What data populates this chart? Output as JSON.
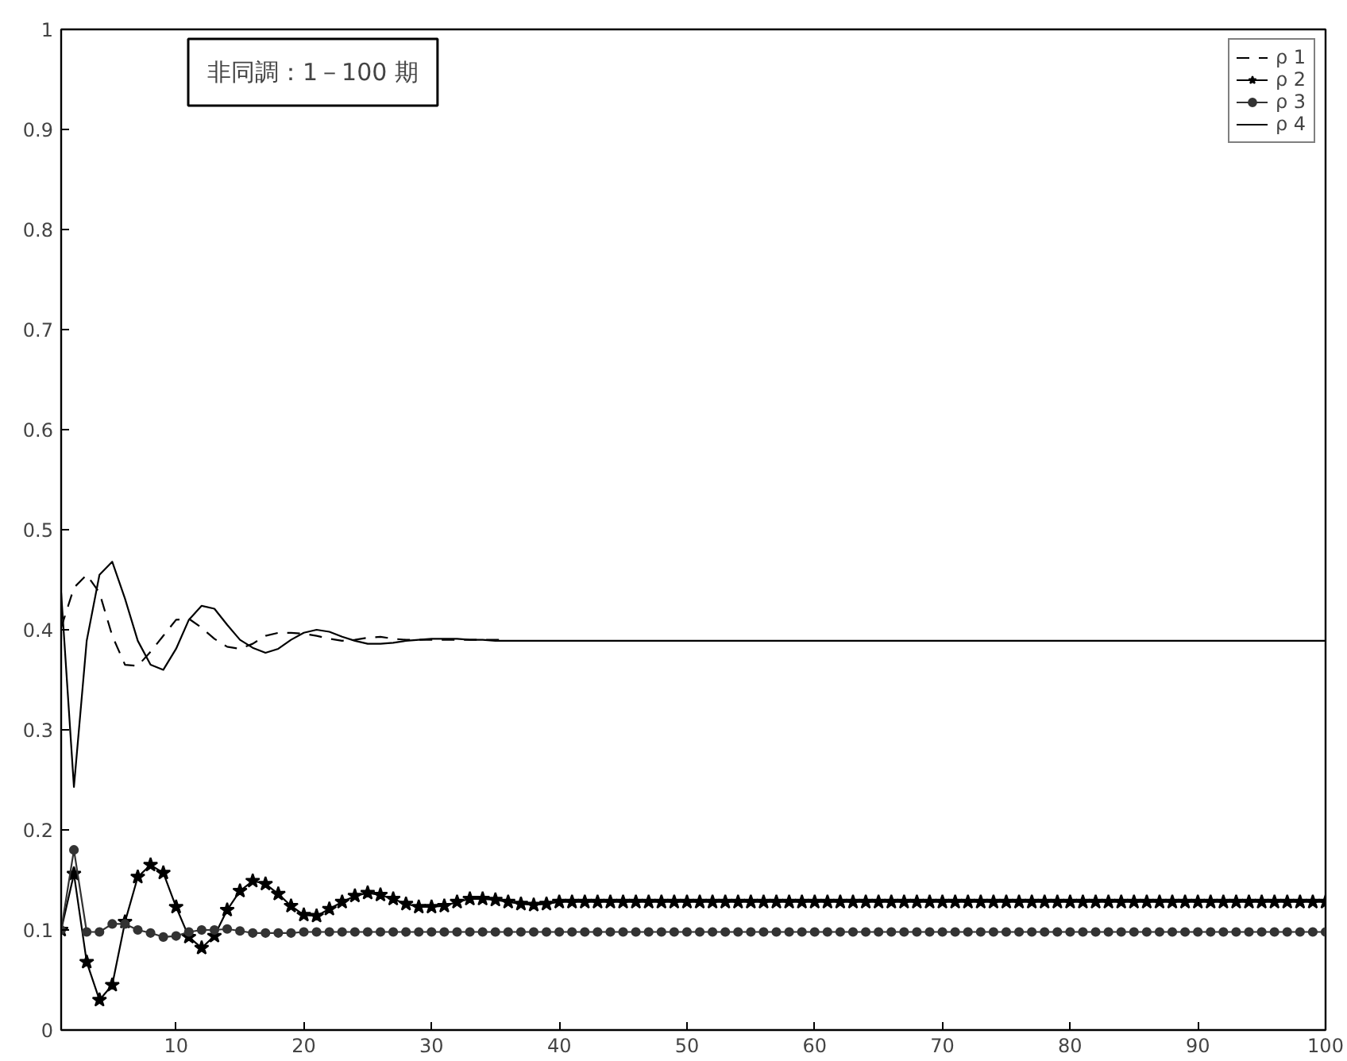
{
  "chart_data": {
    "type": "line",
    "annotations": [
      "非同調：1－100 期"
    ],
    "x": [
      1,
      2,
      3,
      4,
      5,
      6,
      7,
      8,
      9,
      10,
      11,
      12,
      13,
      14,
      15,
      16,
      17,
      18,
      19,
      20,
      21,
      22,
      23,
      24,
      25,
      26,
      27,
      28,
      29,
      30,
      31,
      32,
      33,
      34,
      35,
      36,
      37,
      38,
      39,
      40,
      41,
      42,
      43,
      44,
      45,
      46,
      47,
      48,
      49,
      50,
      51,
      52,
      53,
      54,
      55,
      56,
      57,
      58,
      59,
      60,
      61,
      62,
      63,
      64,
      65,
      66,
      67,
      68,
      69,
      70,
      71,
      72,
      73,
      74,
      75,
      76,
      77,
      78,
      79,
      80,
      81,
      82,
      83,
      84,
      85,
      86,
      87,
      88,
      89,
      90,
      91,
      92,
      93,
      94,
      95,
      96,
      97,
      98,
      99,
      100
    ],
    "series": [
      {
        "name": "ρ 1",
        "color": "#000000",
        "line_style": "dashed",
        "marker": "none",
        "x": [
          1,
          2,
          3,
          4,
          5,
          6,
          7,
          8,
          9,
          10,
          11,
          12,
          13,
          14,
          15,
          16,
          17,
          18,
          19,
          20,
          21,
          22,
          23,
          24,
          25,
          26,
          27,
          28,
          29,
          30,
          31,
          32,
          33,
          34,
          35,
          36
        ],
        "values": [
          0.402,
          0.442,
          0.455,
          0.437,
          0.394,
          0.365,
          0.364,
          0.378,
          0.394,
          0.41,
          0.411,
          0.402,
          0.391,
          0.383,
          0.381,
          0.386,
          0.394,
          0.397,
          0.397,
          0.396,
          0.394,
          0.391,
          0.389,
          0.39,
          0.392,
          0.393,
          0.391,
          0.39,
          0.39,
          0.39,
          0.39,
          0.39,
          0.39,
          0.39,
          0.39,
          0.39
        ]
      },
      {
        "name": "ρ 2",
        "color": "#000000",
        "line_style": "solid",
        "marker": "star",
        "values": [
          0.1,
          0.156,
          0.068,
          0.03,
          0.045,
          0.108,
          0.153,
          0.165,
          0.157,
          0.123,
          0.093,
          0.082,
          0.094,
          0.12,
          0.139,
          0.149,
          0.146,
          0.136,
          0.124,
          0.115,
          0.114,
          0.121,
          0.128,
          0.134,
          0.137,
          0.135,
          0.131,
          0.126,
          0.123,
          0.123,
          0.124,
          0.128,
          0.131,
          0.131,
          0.13,
          0.128,
          0.126,
          0.125,
          0.126,
          0.128,
          0.128,
          0.128,
          0.128,
          0.128,
          0.128,
          0.128,
          0.128,
          0.128,
          0.128,
          0.128,
          0.128,
          0.128,
          0.128,
          0.128,
          0.128,
          0.128,
          0.128,
          0.128,
          0.128,
          0.128,
          0.128,
          0.128,
          0.128,
          0.128,
          0.128,
          0.128,
          0.128,
          0.128,
          0.128,
          0.128,
          0.128,
          0.128,
          0.128,
          0.128,
          0.128,
          0.128,
          0.128,
          0.128,
          0.128,
          0.128,
          0.128,
          0.128,
          0.128,
          0.128,
          0.128,
          0.128,
          0.128,
          0.128,
          0.128,
          0.128,
          0.128,
          0.128,
          0.128,
          0.128,
          0.128,
          0.128,
          0.128,
          0.128,
          0.128,
          0.128
        ]
      },
      {
        "name": "ρ 3",
        "color": "#333333",
        "line_style": "solid",
        "marker": "circle",
        "values": [
          0.1,
          0.18,
          0.098,
          0.098,
          0.106,
          0.106,
          0.1,
          0.097,
          0.093,
          0.094,
          0.098,
          0.1,
          0.1,
          0.101,
          0.099,
          0.097,
          0.097,
          0.097,
          0.097,
          0.098,
          0.098,
          0.098,
          0.098,
          0.098,
          0.098,
          0.098,
          0.098,
          0.098,
          0.098,
          0.098,
          0.098,
          0.098,
          0.098,
          0.098,
          0.098,
          0.098,
          0.098,
          0.098,
          0.098,
          0.098,
          0.098,
          0.098,
          0.098,
          0.098,
          0.098,
          0.098,
          0.098,
          0.098,
          0.098,
          0.098,
          0.098,
          0.098,
          0.098,
          0.098,
          0.098,
          0.098,
          0.098,
          0.098,
          0.098,
          0.098,
          0.098,
          0.098,
          0.098,
          0.098,
          0.098,
          0.098,
          0.098,
          0.098,
          0.098,
          0.098,
          0.098,
          0.098,
          0.098,
          0.098,
          0.098,
          0.098,
          0.098,
          0.098,
          0.098,
          0.098,
          0.098,
          0.098,
          0.098,
          0.098,
          0.098,
          0.098,
          0.098,
          0.098,
          0.098,
          0.098,
          0.098,
          0.098,
          0.098,
          0.098,
          0.098,
          0.098,
          0.098,
          0.098,
          0.098,
          0.098
        ]
      },
      {
        "name": "ρ 4",
        "color": "#000000",
        "line_style": "solid",
        "marker": "none",
        "values": [
          0.437,
          0.243,
          0.389,
          0.455,
          0.468,
          0.431,
          0.389,
          0.365,
          0.36,
          0.381,
          0.41,
          0.424,
          0.421,
          0.405,
          0.39,
          0.382,
          0.377,
          0.381,
          0.39,
          0.397,
          0.4,
          0.398,
          0.393,
          0.389,
          0.386,
          0.386,
          0.387,
          0.389,
          0.39,
          0.391,
          0.391,
          0.391,
          0.39,
          0.39,
          0.389,
          0.389,
          0.389,
          0.389,
          0.389,
          0.389,
          0.389,
          0.389,
          0.389,
          0.389,
          0.389,
          0.389,
          0.389,
          0.389,
          0.389,
          0.389,
          0.389,
          0.389,
          0.389,
          0.389,
          0.389,
          0.389,
          0.389,
          0.389,
          0.389,
          0.389,
          0.389,
          0.389,
          0.389,
          0.389,
          0.389,
          0.389,
          0.389,
          0.389,
          0.389,
          0.389,
          0.389,
          0.389,
          0.389,
          0.389,
          0.389,
          0.389,
          0.389,
          0.389,
          0.389,
          0.389,
          0.389,
          0.389,
          0.389,
          0.389,
          0.389,
          0.389,
          0.389,
          0.389,
          0.389,
          0.389,
          0.389,
          0.389,
          0.389,
          0.389,
          0.389,
          0.389,
          0.389,
          0.389,
          0.389,
          0.389
        ]
      }
    ],
    "xlim": [
      1,
      100
    ],
    "ylim": [
      0,
      1
    ],
    "xticks": [
      10,
      20,
      30,
      40,
      50,
      60,
      70,
      80,
      90,
      100
    ],
    "yticks": [
      0,
      0.1,
      0.2,
      0.3,
      0.4,
      0.5,
      0.6,
      0.7,
      0.8,
      0.9,
      1
    ],
    "grid": false,
    "legend": "top right"
  }
}
